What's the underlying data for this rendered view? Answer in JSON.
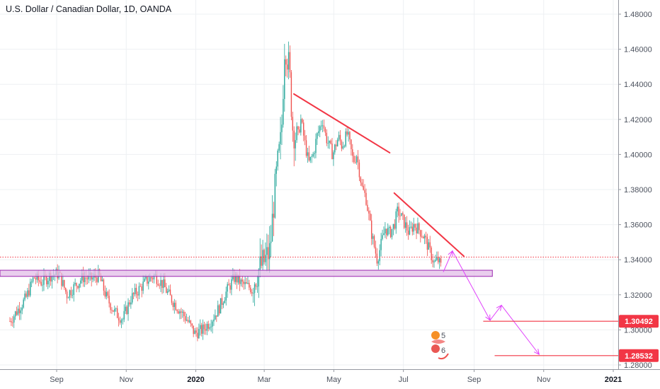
{
  "chart_data": {
    "type": "candlestick",
    "title": "U.S. Dollar / Canadian Dollar, 1D, OANDA",
    "ylim": [
      1.275,
      1.487
    ],
    "y_ticks": [
      "1.48000",
      "1.46000",
      "1.44000",
      "1.42000",
      "1.40000",
      "1.38000",
      "1.36000",
      "1.34000",
      "1.32000",
      "1.30000",
      "1.28000"
    ],
    "x_ticks": [
      {
        "label": "Sep",
        "date": "2019-09-01",
        "bold": false
      },
      {
        "label": "Nov",
        "date": "2019-11-01",
        "bold": false
      },
      {
        "label": "2020",
        "date": "2020-01-01",
        "bold": true
      },
      {
        "label": "Mar",
        "date": "2020-03-01",
        "bold": false
      },
      {
        "label": "May",
        "date": "2020-05-01",
        "bold": false
      },
      {
        "label": "Jul",
        "date": "2020-07-01",
        "bold": false
      },
      {
        "label": "Sep",
        "date": "2020-09-01",
        "bold": false
      },
      {
        "label": "Nov",
        "date": "2020-11-01",
        "bold": false
      },
      {
        "label": "2021",
        "date": "2021-01-01",
        "bold": true
      }
    ],
    "price_path": [
      [
        "2019-07-22",
        1.305
      ],
      [
        "2019-08-05",
        1.318
      ],
      [
        "2019-08-12",
        1.33
      ],
      [
        "2019-08-19",
        1.327
      ],
      [
        "2019-08-26",
        1.331
      ],
      [
        "2019-09-03",
        1.332
      ],
      [
        "2019-09-10",
        1.32
      ],
      [
        "2019-09-17",
        1.325
      ],
      [
        "2019-09-24",
        1.33
      ],
      [
        "2019-10-01",
        1.329
      ],
      [
        "2019-10-08",
        1.331
      ],
      [
        "2019-10-15",
        1.318
      ],
      [
        "2019-10-22",
        1.31
      ],
      [
        "2019-10-29",
        1.306
      ],
      [
        "2019-11-05",
        1.318
      ],
      [
        "2019-11-12",
        1.323
      ],
      [
        "2019-11-19",
        1.328
      ],
      [
        "2019-11-26",
        1.331
      ],
      [
        "2019-12-03",
        1.326
      ],
      [
        "2019-12-10",
        1.318
      ],
      [
        "2019-12-17",
        1.312
      ],
      [
        "2019-12-24",
        1.306
      ],
      [
        "2019-12-31",
        1.298
      ],
      [
        "2020-01-07",
        1.3
      ],
      [
        "2020-01-14",
        1.305
      ],
      [
        "2020-01-21",
        1.312
      ],
      [
        "2020-01-28",
        1.322
      ],
      [
        "2020-02-04",
        1.33
      ],
      [
        "2020-02-11",
        1.326
      ],
      [
        "2020-02-18",
        1.324
      ],
      [
        "2020-02-25",
        1.334
      ],
      [
        "2020-03-02",
        1.34
      ],
      [
        "2020-03-06",
        1.345
      ],
      [
        "2020-03-09",
        1.37
      ],
      [
        "2020-03-12",
        1.39
      ],
      [
        "2020-03-16",
        1.41
      ],
      [
        "2020-03-19",
        1.465
      ],
      [
        "2020-03-23",
        1.448
      ],
      [
        "2020-03-26",
        1.415
      ],
      [
        "2020-03-30",
        1.408
      ],
      [
        "2020-04-02",
        1.42
      ],
      [
        "2020-04-06",
        1.405
      ],
      [
        "2020-04-09",
        1.395
      ],
      [
        "2020-04-13",
        1.4
      ],
      [
        "2020-04-16",
        1.41
      ],
      [
        "2020-04-21",
        1.42
      ],
      [
        "2020-04-24",
        1.41
      ],
      [
        "2020-04-30",
        1.4
      ],
      [
        "2020-05-05",
        1.41
      ],
      [
        "2020-05-08",
        1.405
      ],
      [
        "2020-05-13",
        1.412
      ],
      [
        "2020-05-18",
        1.396
      ],
      [
        "2020-05-21",
        1.4
      ],
      [
        "2020-05-26",
        1.38
      ],
      [
        "2020-05-29",
        1.376
      ],
      [
        "2020-06-03",
        1.355
      ],
      [
        "2020-06-08",
        1.34
      ],
      [
        "2020-06-10",
        1.345
      ],
      [
        "2020-06-15",
        1.358
      ],
      [
        "2020-06-19",
        1.355
      ],
      [
        "2020-06-23",
        1.36
      ],
      [
        "2020-06-26",
        1.368
      ],
      [
        "2020-07-01",
        1.362
      ],
      [
        "2020-07-06",
        1.355
      ],
      [
        "2020-07-10",
        1.36
      ],
      [
        "2020-07-15",
        1.357
      ],
      [
        "2020-07-20",
        1.352
      ],
      [
        "2020-07-24",
        1.345
      ],
      [
        "2020-07-28",
        1.338
      ],
      [
        "2020-07-31",
        1.34
      ],
      [
        "2020-08-04",
        1.335
      ]
    ],
    "annotations": {
      "support_zone": {
        "from": "2019-07-22",
        "to": "2020-09-17",
        "low": 1.3305,
        "high": 1.334
      },
      "dotted_level": 1.3415,
      "trendlines": [
        {
          "x1": "2020-03-27",
          "y1": 1.4345,
          "x2": "2020-06-19",
          "y2": 1.401
        },
        {
          "x1": "2020-06-23",
          "y1": 1.378,
          "x2": "2020-08-23",
          "y2": 1.342
        }
      ],
      "projection_path": [
        [
          "2020-08-05",
          1.333
        ],
        [
          "2020-08-13",
          1.345
        ],
        [
          "2020-09-15",
          1.3055
        ],
        [
          "2020-09-25",
          1.314
        ],
        [
          "2020-10-28",
          1.286
        ]
      ],
      "price_levels": [
        {
          "label": "1.30492",
          "value": 1.30492,
          "from": "2020-09-09"
        },
        {
          "label": "1.28532",
          "value": 1.28532,
          "from": "2020-09-19"
        }
      ],
      "logo_numbers": [
        "5",
        "6"
      ]
    },
    "colors": {
      "up": "#26a69a",
      "down": "#ef5350",
      "trend": "#f23645",
      "projection": "#e040fb",
      "zone": "#e1bee7",
      "zone_border": "#9c27b0",
      "grid": "#eef0f3",
      "label_bg": "#f23645"
    }
  }
}
